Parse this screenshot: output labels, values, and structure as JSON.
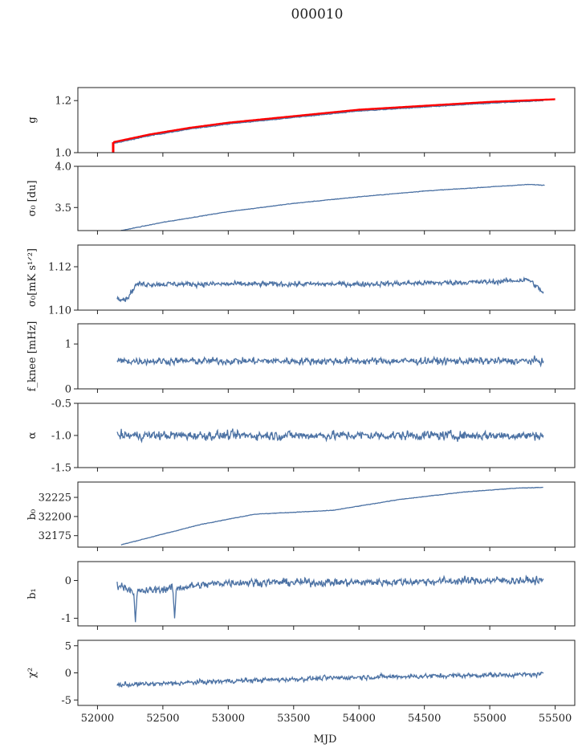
{
  "figure": {
    "title": "000010",
    "xlabel": "MJD"
  },
  "colors": {
    "series": "#4c72a4",
    "fit": "#ff0000",
    "frame": "#222222"
  },
  "chart_data": [
    {
      "type": "line",
      "ylabel": "g",
      "xlim": [
        51850,
        55650
      ],
      "ylim": [
        1.0,
        1.25
      ],
      "yticks": [
        "1.0",
        "1.2"
      ],
      "ytick_values": [
        1.0,
        1.2
      ],
      "x_range": [
        52120,
        55410
      ],
      "trend": [
        [
          52120,
          1.035
        ],
        [
          52400,
          1.065
        ],
        [
          52700,
          1.09
        ],
        [
          53000,
          1.11
        ],
        [
          53500,
          1.135
        ],
        [
          54000,
          1.16
        ],
        [
          54500,
          1.175
        ],
        [
          55000,
          1.19
        ],
        [
          55410,
          1.2
        ]
      ],
      "noise": 0.002,
      "fit_series": {
        "trend": [
          [
            52120,
            1.04
          ],
          [
            52400,
            1.07
          ],
          [
            52700,
            1.095
          ],
          [
            53000,
            1.115
          ],
          [
            53500,
            1.14
          ],
          [
            54000,
            1.165
          ],
          [
            54500,
            1.18
          ],
          [
            55000,
            1.195
          ],
          [
            55500,
            1.205
          ]
        ],
        "spike_x": 52120,
        "spike_y": [
          1.0,
          1.04
        ]
      }
    },
    {
      "type": "line",
      "ylabel": "σ₀ [du]",
      "xlim": [
        51850,
        55650
      ],
      "ylim": [
        3.22,
        4.0
      ],
      "yticks": [
        "3.5",
        "4.0"
      ],
      "ytick_values": [
        3.5,
        4.0
      ],
      "x_range": [
        52180,
        55420
      ],
      "trend": [
        [
          52180,
          3.22
        ],
        [
          52500,
          3.32
        ],
        [
          53000,
          3.45
        ],
        [
          53500,
          3.55
        ],
        [
          54000,
          3.63
        ],
        [
          54500,
          3.7
        ],
        [
          55000,
          3.75
        ],
        [
          55300,
          3.78
        ],
        [
          55420,
          3.77
        ]
      ],
      "noise": 0.004
    },
    {
      "type": "line",
      "ylabel": "σ₀[mK s¹ᐟ²]",
      "xlim": [
        51850,
        55650
      ],
      "ylim": [
        1.1,
        1.13
      ],
      "yticks": [
        "1.10",
        "1.12"
      ],
      "ytick_values": [
        1.1,
        1.12
      ],
      "x_range": [
        52150,
        55410
      ],
      "trend": [
        [
          52150,
          1.106
        ],
        [
          52220,
          1.105
        ],
        [
          52300,
          1.112
        ],
        [
          53000,
          1.112
        ],
        [
          54000,
          1.112
        ],
        [
          55000,
          1.113
        ],
        [
          55300,
          1.114
        ],
        [
          55410,
          1.108
        ]
      ],
      "noise": 0.0015
    },
    {
      "type": "line",
      "ylabel": "f_knee [mHz]",
      "xlim": [
        51850,
        55650
      ],
      "ylim": [
        0,
        1.45
      ],
      "yticks": [
        "0",
        "1"
      ],
      "ytick_values": [
        0,
        1
      ],
      "x_range": [
        52150,
        55410
      ],
      "trend": [
        [
          52150,
          0.62
        ],
        [
          55410,
          0.62
        ]
      ],
      "noise": 0.1
    },
    {
      "type": "line",
      "ylabel": "α",
      "xlim": [
        51850,
        55650
      ],
      "ylim": [
        -1.5,
        -0.5
      ],
      "yticks": [
        "-1.5",
        "-1.0",
        "-0.5"
      ],
      "ytick_values": [
        -1.5,
        -1.0,
        -0.5
      ],
      "x_range": [
        52150,
        55410
      ],
      "trend": [
        [
          52150,
          -1.0
        ],
        [
          55410,
          -1.0
        ]
      ],
      "noise": 0.09
    },
    {
      "type": "line",
      "ylabel": "b₀",
      "xlim": [
        51850,
        55650
      ],
      "ylim": [
        32160,
        32245
      ],
      "yticks": [
        "32175",
        "32200",
        "32225"
      ],
      "ytick_values": [
        32175,
        32200,
        32225
      ],
      "x_range": [
        52180,
        55410
      ],
      "trend": [
        [
          52180,
          32163
        ],
        [
          52500,
          32177
        ],
        [
          52800,
          32190
        ],
        [
          53200,
          32203
        ],
        [
          53800,
          32208
        ],
        [
          54300,
          32222
        ],
        [
          54800,
          32232
        ],
        [
          55200,
          32237
        ],
        [
          55410,
          32238
        ]
      ],
      "noise": 0.4
    },
    {
      "type": "line",
      "ylabel": "b₁",
      "xlim": [
        51850,
        55650
      ],
      "ylim": [
        -1.2,
        0.5
      ],
      "yticks": [
        "-1",
        "0"
      ],
      "ytick_values": [
        -1,
        0
      ],
      "x_range": [
        52150,
        55410
      ],
      "trend": [
        [
          52150,
          -0.1
        ],
        [
          52300,
          -0.3
        ],
        [
          53000,
          -0.05
        ],
        [
          54000,
          -0.05
        ],
        [
          55000,
          0.0
        ],
        [
          55410,
          0.0
        ]
      ],
      "noise": 0.13,
      "dips": [
        [
          52290,
          -1.1
        ],
        [
          52590,
          -1.0
        ]
      ]
    },
    {
      "type": "line",
      "ylabel": "χ²",
      "xlim": [
        51850,
        55650
      ],
      "ylim": [
        -6,
        6
      ],
      "yticks": [
        "-5",
        "0",
        "5"
      ],
      "ytick_values": [
        -5,
        0,
        5
      ],
      "xticks": [
        "52000",
        "52500",
        "53000",
        "53500",
        "54000",
        "54500",
        "55000",
        "55500"
      ],
      "xtick_values": [
        52000,
        52500,
        53000,
        53500,
        54000,
        54500,
        55000,
        55500
      ],
      "x_range": [
        52150,
        55410
      ],
      "trend": [
        [
          52150,
          -2.2
        ],
        [
          52500,
          -2.0
        ],
        [
          53000,
          -1.5
        ],
        [
          54000,
          -0.8
        ],
        [
          55000,
          -0.4
        ],
        [
          55410,
          -0.3
        ]
      ],
      "noise": 0.55
    }
  ]
}
